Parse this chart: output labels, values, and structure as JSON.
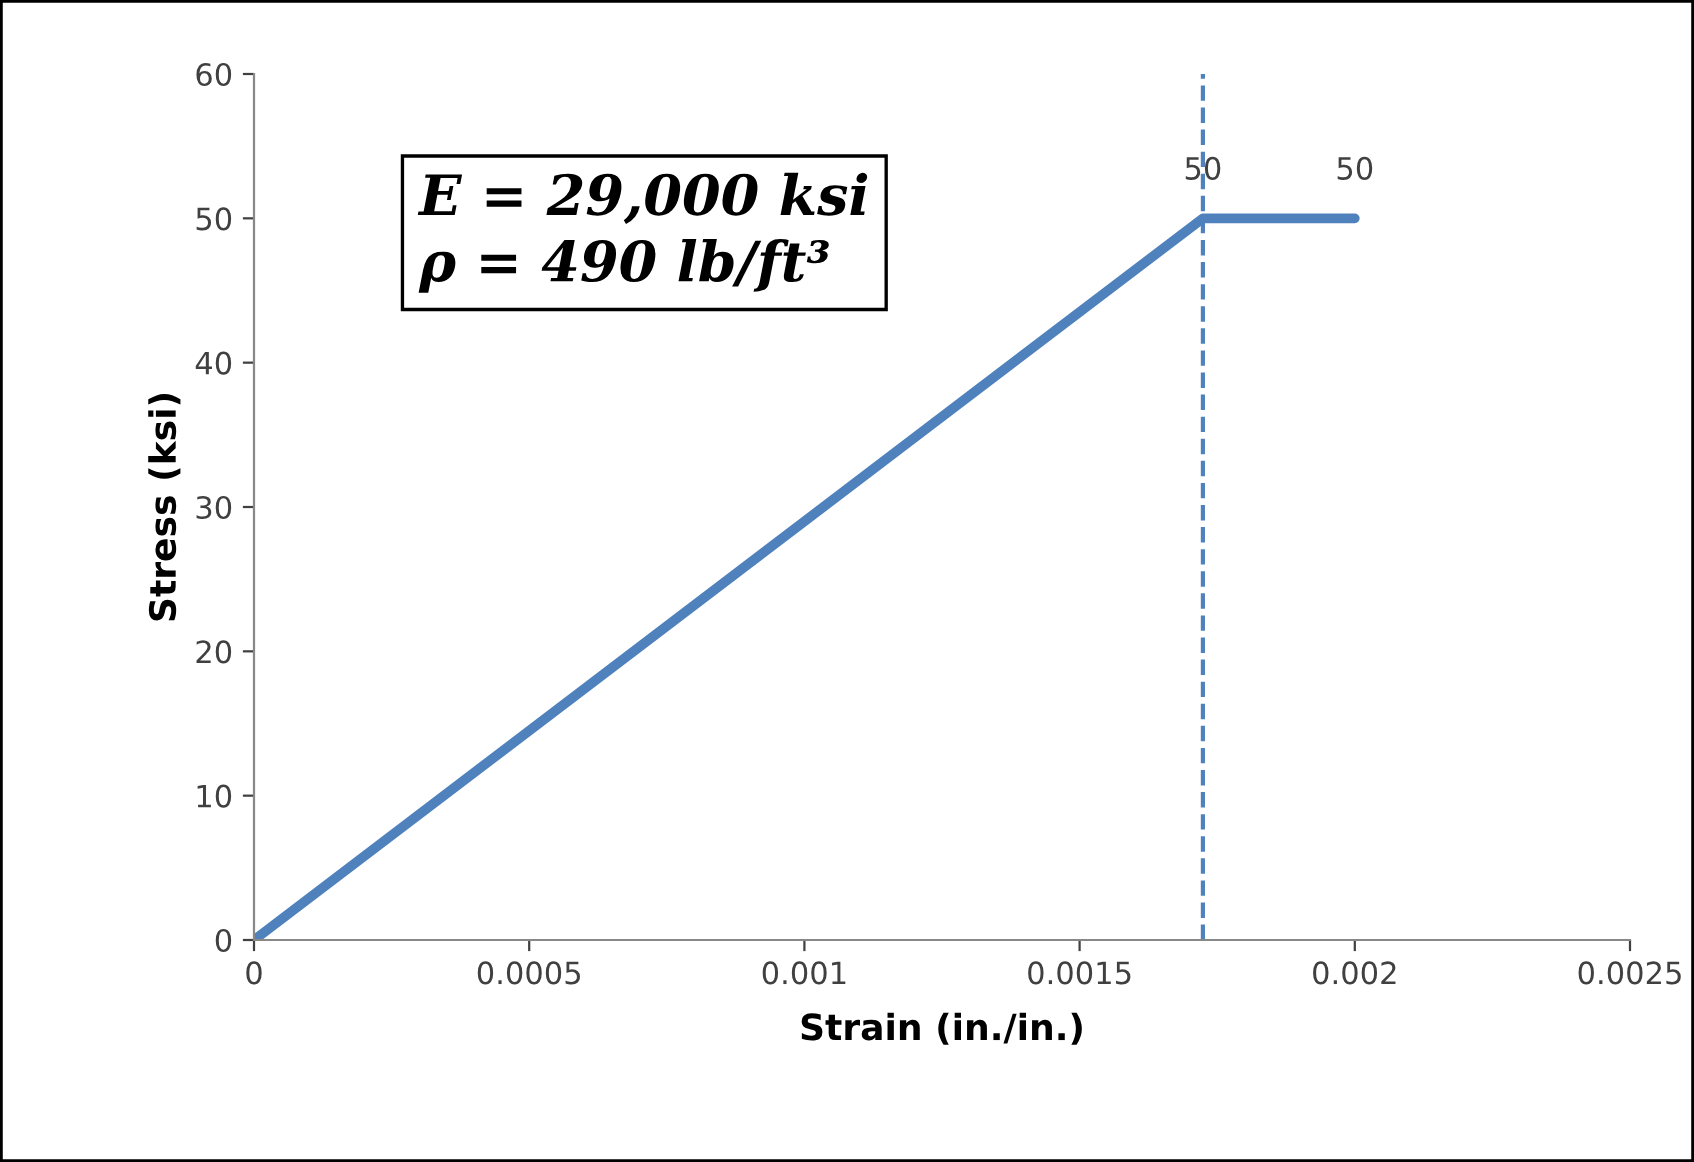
{
  "chart_data": {
    "type": "line",
    "xlabel": "Strain (in./in.)",
    "ylabel": "Stress (ksi)",
    "x": [
      0,
      0.001724,
      0.002
    ],
    "series": [
      {
        "color": "#4f81bd",
        "values": [
          0,
          50,
          50
        ],
        "value_labels": [
          null,
          "50",
          "50"
        ]
      }
    ],
    "xlim": [
      0,
      0.0025
    ],
    "xticks": [
      0,
      0.0005,
      0.001,
      0.0015,
      0.002,
      0.0025
    ],
    "ylim": [
      0,
      60
    ],
    "yticks": [
      0,
      10,
      20,
      30,
      40,
      50,
      60
    ],
    "ref_lines": [
      {
        "axis": "x",
        "value": 0.001724,
        "color": "#4f81bd",
        "line_style": "dashed"
      }
    ],
    "annotations": [
      "E = 29,000 ksi\nρ = 490 lb/ft³"
    ],
    "grid": false,
    "legend": false,
    "marker": "none",
    "line_style": "solid"
  }
}
